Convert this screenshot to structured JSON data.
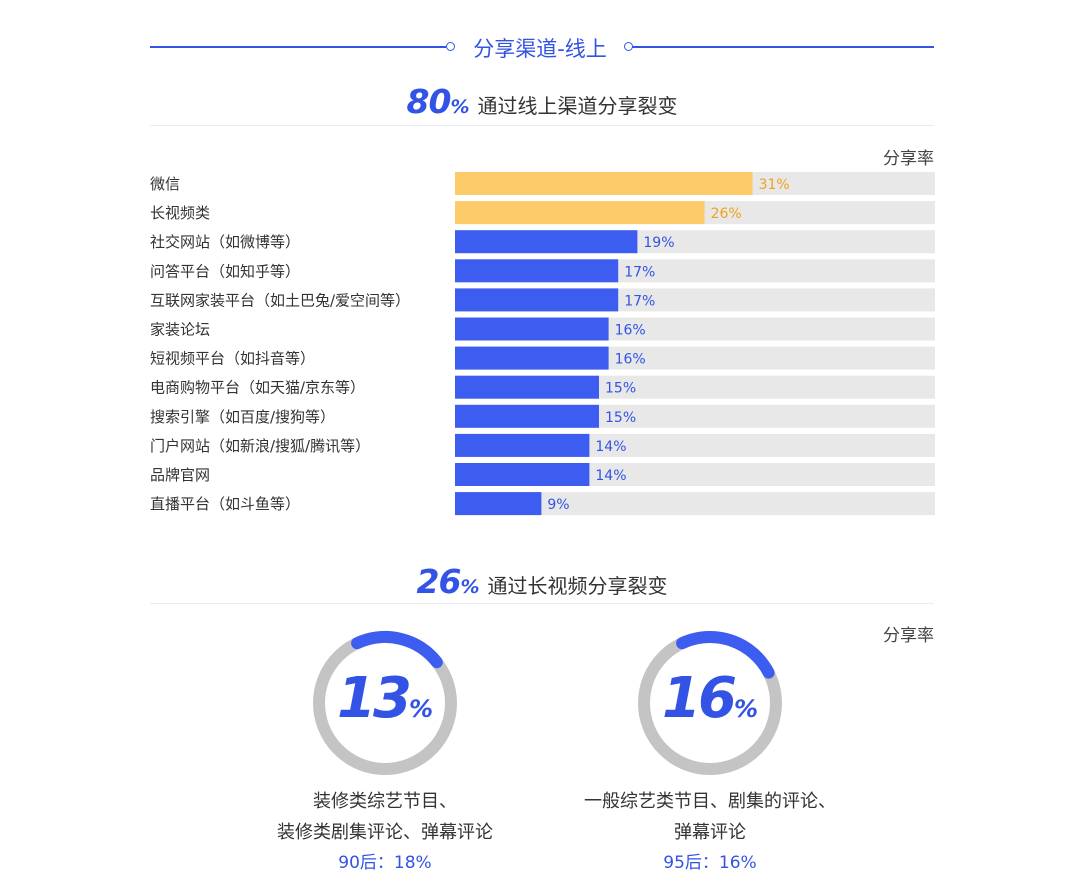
{
  "section": {
    "title": "分享渠道-线上"
  },
  "headline1": {
    "big": "80",
    "pct": "%",
    "text": "通过线上渠道分享裂变"
  },
  "unit1": "分享率",
  "chart_data": {
    "type": "bar",
    "orientation": "horizontal",
    "categories": [
      "微信",
      "长视频类",
      "社交网站（如微博等）",
      "问答平台（如知乎等）",
      "互联网家装平台（如土巴兔/爱空间等）",
      "家装论坛",
      "短视频平台（如抖音等）",
      "电商购物平台（如天猫/京东等）",
      "搜索引擎（如百度/搜狗等）",
      "门户网站（如新浪/搜狐/腾讯等）",
      "品牌官网",
      "直播平台（如斗鱼等）"
    ],
    "values": [
      31,
      26,
      19,
      17,
      17,
      16,
      16,
      15,
      15,
      14,
      14,
      9
    ],
    "value_labels": [
      "31%",
      "26%",
      "19%",
      "17%",
      "17%",
      "16%",
      "16%",
      "15%",
      "15%",
      "14%",
      "14%",
      "9%"
    ],
    "highlight_count": 2,
    "xlim": [
      0,
      100
    ],
    "colors": {
      "highlight": "#fecb6a",
      "highlight_text": "#f0a21e",
      "normal": "#3d5cf0",
      "normal_text": "#3353e5",
      "track": "#e8e8e8"
    }
  },
  "headline2": {
    "big": "26",
    "pct": "%",
    "text": "通过长视频分享裂变"
  },
  "unit2": "分享率",
  "donuts": [
    {
      "big": "13",
      "pct": "%",
      "value": 13,
      "line1": "装修类综艺节目、",
      "line2": "装修类剧集评论、弹幕评论",
      "stat": "90后：18%"
    },
    {
      "big": "16",
      "pct": "%",
      "value": 16,
      "line1": "一般综艺类节目、剧集的评论、",
      "line2": "弹幕评论",
      "stat": "95后：16%"
    }
  ],
  "colors": {
    "accent": "#3353e5",
    "ring_track": "#c4c4c4",
    "ring_fill": "#3d5cf0"
  }
}
